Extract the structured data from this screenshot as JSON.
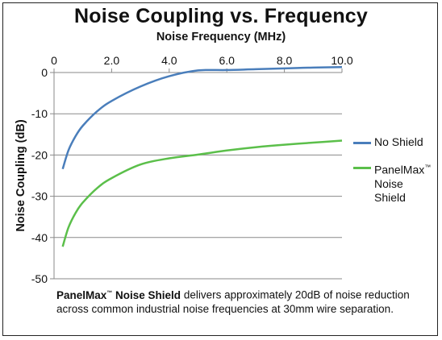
{
  "chart_data": {
    "type": "line",
    "title": "Noise Coupling vs. Frequency",
    "xlabel": "Noise Frequency (MHz)",
    "ylabel": "Noise Coupling (dB)",
    "xlim": [
      0,
      10.0
    ],
    "ylim": [
      -50,
      0
    ],
    "x_ticks": [
      "0",
      "2.0",
      "4.0",
      "6.0",
      "8.0",
      "10.0"
    ],
    "x_tick_values": [
      0,
      2,
      4,
      6,
      8,
      10
    ],
    "y_ticks": [
      "0",
      "-10",
      "-20",
      "-30",
      "-40",
      "-50"
    ],
    "y_tick_values": [
      0,
      -10,
      -20,
      -30,
      -40,
      -50
    ],
    "x_axis_position": "top",
    "grid": "horizontal",
    "legend_position": "right",
    "series": [
      {
        "name": "No Shield",
        "color": "#4a7ebb",
        "x": [
          0.3,
          0.5,
          0.75,
          1.0,
          1.5,
          2.0,
          3.0,
          4.0,
          5.0,
          6.0,
          7.0,
          8.0,
          9.0,
          10.0
        ],
        "y": [
          -23.4,
          -18.9,
          -15.4,
          -12.9,
          -9.4,
          -6.9,
          -3.4,
          -0.9,
          0.5,
          0.6,
          0.8,
          1.0,
          1.2,
          1.3
        ]
      },
      {
        "name": "PanelMax™ Noise Shield",
        "color": "#5bbf4a",
        "x": [
          0.3,
          0.5,
          0.75,
          1.0,
          1.5,
          2.0,
          3.0,
          4.0,
          5.0,
          6.0,
          7.0,
          8.0,
          9.0,
          10.0
        ],
        "y": [
          -42.2,
          -37.6,
          -34.0,
          -31.5,
          -28.0,
          -25.6,
          -22.3,
          -20.8,
          -19.9,
          -18.9,
          -18.1,
          -17.5,
          -17.0,
          -16.5
        ]
      }
    ]
  },
  "legend": {
    "item1": "No Shield",
    "item2_line1": "PanelMax",
    "item2_tm": "™",
    "item2_line2": "Noise",
    "item2_line3": "Shield"
  },
  "caption": {
    "brand": "PanelMax",
    "tm": "™",
    "bold_rest": " Noise Shield",
    "text": " delivers approximately 20dB of noise reduction across common industrial noise frequencies at 30mm wire separation."
  }
}
